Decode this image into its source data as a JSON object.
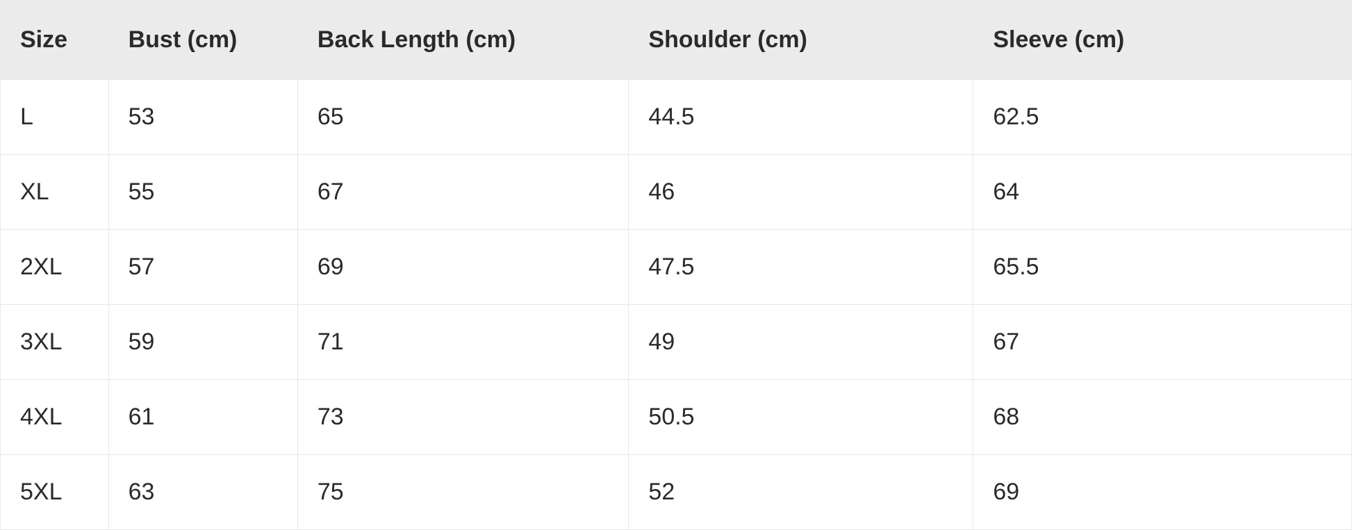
{
  "table": {
    "type": "table",
    "background_color": "#ffffff",
    "header_background_color": "#ebebeb",
    "border_color": "#e8e8e8",
    "text_color": "#2a2a2a",
    "header_fontsize": 34,
    "cell_fontsize": 34,
    "header_fontweight": 700,
    "cell_fontweight": 400,
    "column_widths_percent": [
      8,
      14,
      24.5,
      25.5,
      28
    ],
    "columns": [
      "Size",
      "Bust (cm)",
      "Back Length (cm)",
      "Shoulder (cm)",
      "Sleeve (cm)"
    ],
    "rows": [
      [
        "L",
        "53",
        "65",
        "44.5",
        "62.5"
      ],
      [
        "XL",
        "55",
        "67",
        "46",
        "64"
      ],
      [
        "2XL",
        "57",
        "69",
        "47.5",
        "65.5"
      ],
      [
        "3XL",
        "59",
        "71",
        "49",
        "67"
      ],
      [
        "4XL",
        "61",
        "73",
        "50.5",
        "68"
      ],
      [
        "5XL",
        "63",
        "75",
        "52",
        "69"
      ]
    ]
  }
}
